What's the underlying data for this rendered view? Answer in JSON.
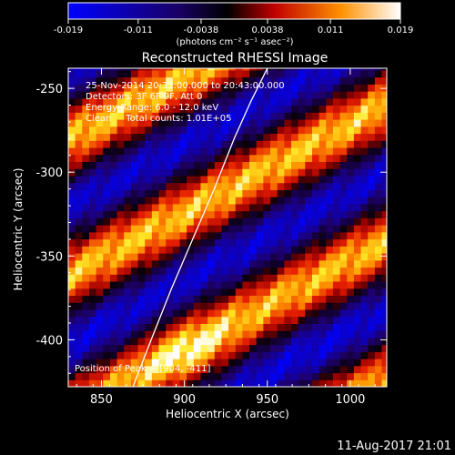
{
  "colorbar": {
    "tick_labels": [
      "-0.019",
      "-0.011",
      "-0.0038",
      "0.0038",
      "0.011",
      "0.019"
    ],
    "units_label": "(photons cm⁻² s⁻¹ asec⁻²)",
    "range": [
      -0.019,
      0.019
    ]
  },
  "chart_data": {
    "type": "heatmap",
    "title": "Reconstructed RHESSI Image",
    "xlabel": "Heliocentric X (arcsec)",
    "ylabel": "Heliocentric Y (arcsec)",
    "xlim": [
      830,
      1022
    ],
    "ylim": [
      -428,
      -238
    ],
    "x_ticks": [
      850,
      900,
      950,
      1000
    ],
    "y_ticks": [
      -250,
      -300,
      -350,
      -400
    ],
    "x_tick_labels": [
      "850",
      "900",
      "950",
      "1000"
    ],
    "y_tick_labels": [
      "-250",
      "-300",
      "-350",
      "-400"
    ],
    "colormap": "red-yellow-blue diverging",
    "annotations": [
      "25-Nov-2014 20:33:00.000 to 20:43:00.000",
      "Detectors: 3F 6F 9F, Att 0",
      "Energy Range: 6.0 - 12.0 keV",
      "Clean     Total counts: 1.01E+05",
      "Position of Peak = [904, -411]"
    ],
    "peak_position": [
      904,
      -411
    ],
    "limb_curve": {
      "x": [
        869,
        880,
        892,
        905,
        918,
        930,
        940,
        950
      ],
      "y": [
        -428,
        -400,
        -370,
        -340,
        -310,
        -280,
        -258,
        -238
      ]
    },
    "band_structure": {
      "orientation_deg": 62,
      "period": 72,
      "phase": 0.55
    }
  },
  "footer": {
    "date": "11-Aug-2017 21:01"
  }
}
